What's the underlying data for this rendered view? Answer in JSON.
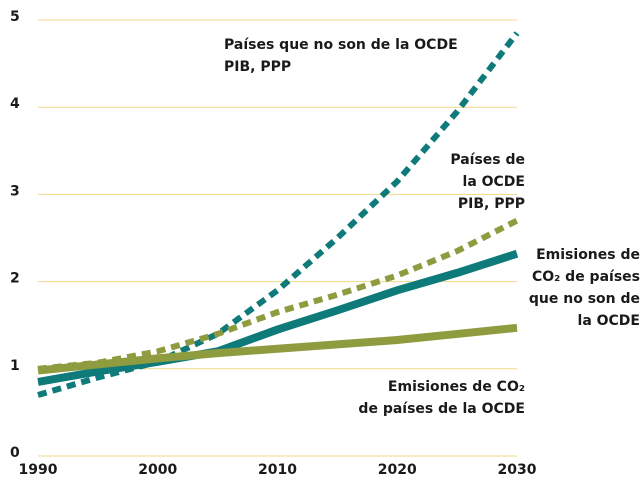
{
  "chart_data": {
    "type": "line",
    "x": [
      1990,
      1995,
      2000,
      2005,
      2010,
      2015,
      2020,
      2025,
      2030
    ],
    "series": [
      {
        "name": "Países que no son de la OCDE\nPIB, PPP",
        "color": "#0f7a7a",
        "dashed": true,
        "values": [
          0.7,
          0.9,
          1.08,
          1.4,
          1.9,
          2.5,
          3.15,
          3.95,
          4.85
        ]
      },
      {
        "name": "Países de\nla OCDE\nPIB, PPP",
        "color": "#8e9b3f",
        "dashed": true,
        "values": [
          1.0,
          1.07,
          1.2,
          1.4,
          1.65,
          1.85,
          2.07,
          2.35,
          2.7
        ]
      },
      {
        "name": "Emisiones de\nCO₂ de países\nque no son de\nla OCDE",
        "color": "#0f7a7a",
        "dashed": false,
        "values": [
          0.85,
          0.97,
          1.08,
          1.2,
          1.45,
          1.67,
          1.9,
          2.1,
          2.32
        ]
      },
      {
        "name": "Emisiones de CO₂\nde países de la OCDE",
        "color": "#8e9b3f",
        "dashed": false,
        "values": [
          0.98,
          1.05,
          1.12,
          1.18,
          1.23,
          1.28,
          1.33,
          1.4,
          1.47
        ]
      }
    ],
    "xlim": [
      1990,
      2030
    ],
    "xticks": [
      1990,
      2000,
      2010,
      2020,
      2030
    ],
    "ylim": [
      0,
      5
    ],
    "yticks": [
      0,
      1,
      2,
      3,
      4,
      5
    ],
    "grid": true,
    "grid_color": "#f0d98a"
  }
}
